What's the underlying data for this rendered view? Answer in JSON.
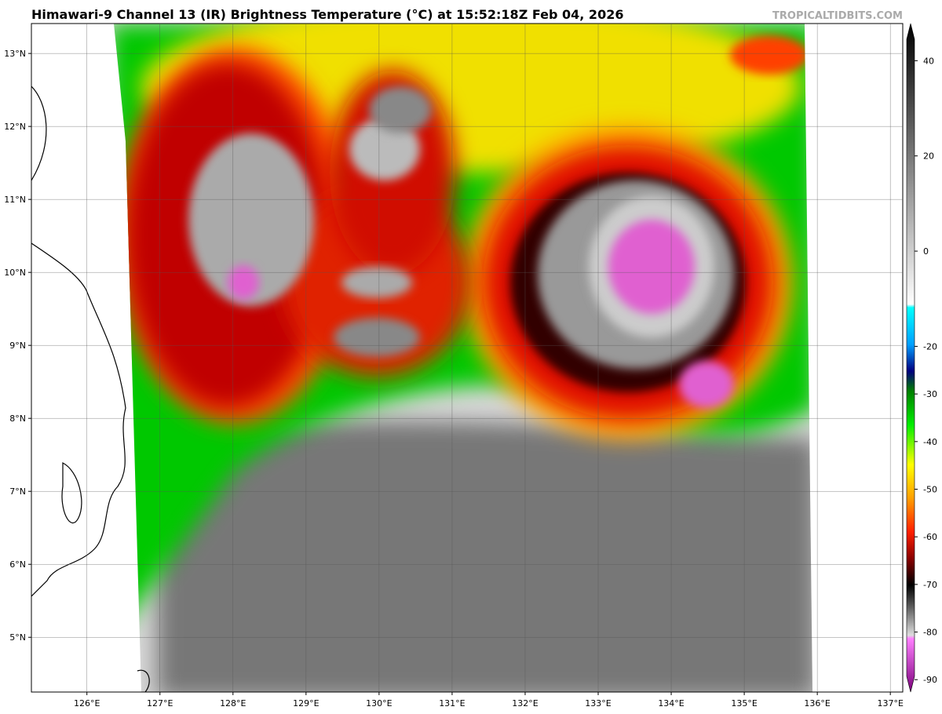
{
  "header": {
    "title": "Himawari-9 Channel 13 (IR) Brightness Temperature (°C) at 15:52:18Z Feb 04, 2026",
    "source": "TROPICALTIDBITS.COM"
  },
  "map": {
    "lonlim": [
      125.24,
      137.17
    ],
    "latlim": [
      4.25,
      13.41
    ],
    "lonticks": [
      {
        "value": 126,
        "label": "126°E"
      },
      {
        "value": 127,
        "label": "127°E"
      },
      {
        "value": 128,
        "label": "128°E"
      },
      {
        "value": 129,
        "label": "129°E"
      },
      {
        "value": 130,
        "label": "130°E"
      },
      {
        "value": 131,
        "label": "131°E"
      },
      {
        "value": 132,
        "label": "132°E"
      },
      {
        "value": 133,
        "label": "133°E"
      },
      {
        "value": 134,
        "label": "134°E"
      },
      {
        "value": 135,
        "label": "135°E"
      },
      {
        "value": 136,
        "label": "136°E"
      },
      {
        "value": 137,
        "label": "137°E"
      }
    ],
    "latticks": [
      {
        "value": 13,
        "label": "13°N"
      },
      {
        "value": 12,
        "label": "12°N"
      },
      {
        "value": 11,
        "label": "11°N"
      },
      {
        "value": 10,
        "label": "10°N"
      },
      {
        "value": 9,
        "label": "9°N"
      },
      {
        "value": 8,
        "label": "8°N"
      },
      {
        "value": 7,
        "label": "7°N"
      },
      {
        "value": 6,
        "label": "6°N"
      },
      {
        "value": 5,
        "label": "5°N"
      }
    ],
    "grid": true
  },
  "colorbar": {
    "lim": [
      -92.6,
      47.8
    ],
    "ticks": [
      40,
      20,
      0,
      -20,
      -30,
      -40,
      -50,
      -60,
      -70,
      -80,
      -90
    ]
  }
}
